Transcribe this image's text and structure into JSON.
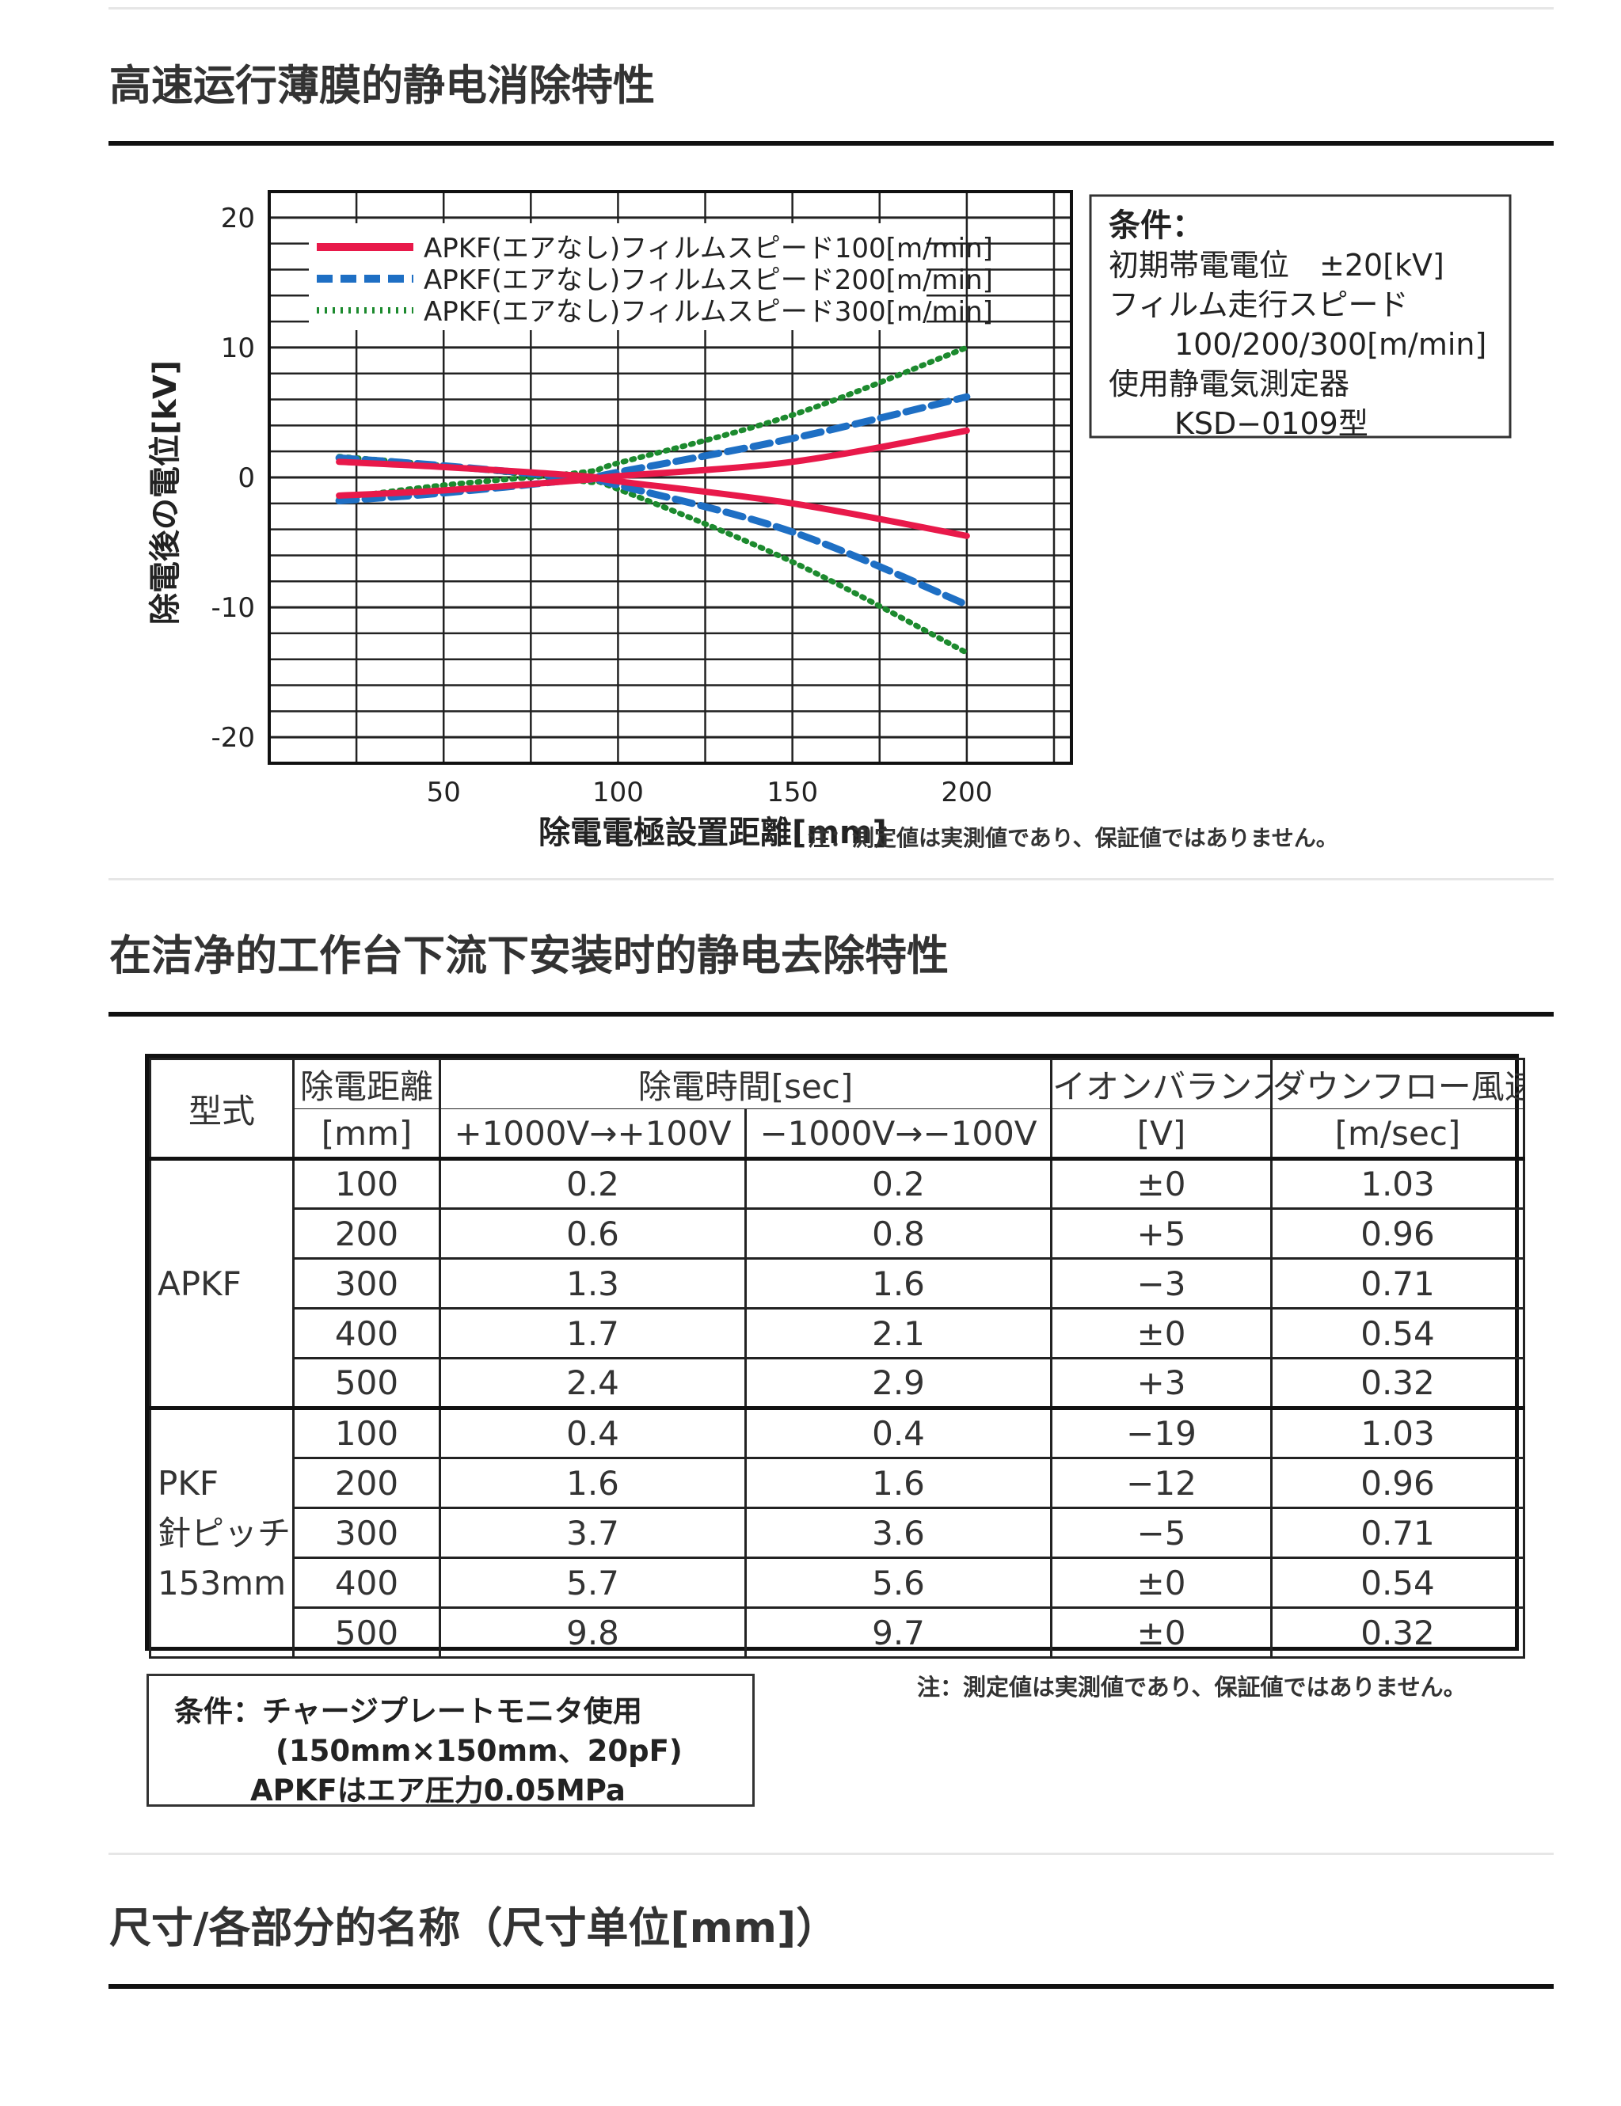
{
  "sections": [
    {
      "title": "高速运行薄膜的静电消除特性"
    },
    {
      "title": "在洁净的工作台下流下安装时的静电去除特性"
    },
    {
      "title": "尺寸/各部分的名称（尺寸单位[mm]）"
    }
  ],
  "chart_data": {
    "type": "line",
    "xlabel": "除電電極設置距離[mm]",
    "ylabel": "除電後の電位[kV]",
    "xlim": [
      0,
      230
    ],
    "ylim": [
      -22,
      22
    ],
    "x_ticks": [
      "50",
      "100",
      "150",
      "200"
    ],
    "y_ticks": [
      "20",
      "10",
      "0",
      "-10",
      "-20"
    ],
    "grid": true,
    "legend_placement": "top-left",
    "series": [
      {
        "name": "APKF(エアなし)フィルムスピード100[m/min]",
        "color": "#e8194a",
        "style": "solid",
        "branches": [
          {
            "x": [
              20,
              50,
              90,
              100,
              150,
              200
            ],
            "y": [
              1.2,
              0.8,
              0.1,
              -0.3,
              -2,
              -4.5
            ]
          },
          {
            "x": [
              20,
              50,
              90,
              100,
              150,
              200
            ],
            "y": [
              -1.4,
              -1,
              -0.2,
              0.1,
              1.2,
              3.6
            ]
          }
        ]
      },
      {
        "name": "APKF(エアなし)フィルムスピード200[m/min]",
        "color": "#1e6fc4",
        "style": "dashed",
        "branches": [
          {
            "x": [
              20,
              50,
              90,
              100,
              150,
              200
            ],
            "y": [
              1.5,
              0.9,
              -0.1,
              -0.6,
              -4.2,
              -9.8
            ]
          },
          {
            "x": [
              20,
              50,
              90,
              100,
              150,
              200
            ],
            "y": [
              -1.8,
              -1.2,
              -0.1,
              0.4,
              3,
              6.2
            ]
          }
        ]
      },
      {
        "name": "APKF(エアなし)フィルムスピード300[m/min]",
        "color": "#1c8a2e",
        "style": "dotted",
        "branches": [
          {
            "x": [
              20,
              50,
              90,
              100,
              150,
              200
            ],
            "y": [
              1.6,
              0.9,
              -0.3,
              -0.9,
              -6.5,
              -13.5
            ]
          },
          {
            "x": [
              20,
              50,
              90,
              100,
              150,
              200
            ],
            "y": [
              -1.6,
              -0.6,
              0.4,
              1.1,
              4.8,
              10
            ]
          }
        ]
      }
    ],
    "condition_box": {
      "title": "条件：",
      "lines": [
        "初期帯電電位　±20[kV]",
        "フィルム走行スピード",
        "100/200/300[m/min]",
        "使用静電気測定器",
        "KSD−0109型"
      ]
    },
    "note": "注：測定値は実測値であり、保証値ではありません。"
  },
  "table": {
    "headers": {
      "model": "型式",
      "distance": "除電距離",
      "distance_unit": "[mm]",
      "time": "除電時間[sec]",
      "time_pos": "+1000V→+100V",
      "time_neg": "−1000V→−100V",
      "balance": "イオンバランス",
      "balance_unit": "[V]",
      "flow": "ダウンフロー風速",
      "flow_unit": "[m/sec]"
    },
    "groups": [
      {
        "label": "APKF",
        "rows": [
          [
            "100",
            "0.2",
            "0.2",
            "±0",
            "1.03"
          ],
          [
            "200",
            "0.6",
            "0.8",
            "+5",
            "0.96"
          ],
          [
            "300",
            "1.3",
            "1.6",
            "−3",
            "0.71"
          ],
          [
            "400",
            "1.7",
            "2.1",
            "±0",
            "0.54"
          ],
          [
            "500",
            "2.4",
            "2.9",
            "+3",
            "0.32"
          ]
        ]
      },
      {
        "label": "PKF",
        "sublabel1": "針ピッチ",
        "sublabel2": "153mm",
        "rows": [
          [
            "100",
            "0.4",
            "0.4",
            "−19",
            "1.03"
          ],
          [
            "200",
            "1.6",
            "1.6",
            "−12",
            "0.96"
          ],
          [
            "300",
            "3.7",
            "3.6",
            "−5",
            "0.71"
          ],
          [
            "400",
            "5.7",
            "5.6",
            "±0",
            "0.54"
          ],
          [
            "500",
            "9.8",
            "9.7",
            "±0",
            "0.32"
          ]
        ]
      }
    ],
    "condition_box": {
      "line1": "条件：チャージプレートモニタ使用",
      "line2": "(150mm×150mm、20pF)",
      "line3": "APKFはエア圧力0.05MPa"
    },
    "note": "注：測定値は実測値であり、保証値ではありません。"
  }
}
